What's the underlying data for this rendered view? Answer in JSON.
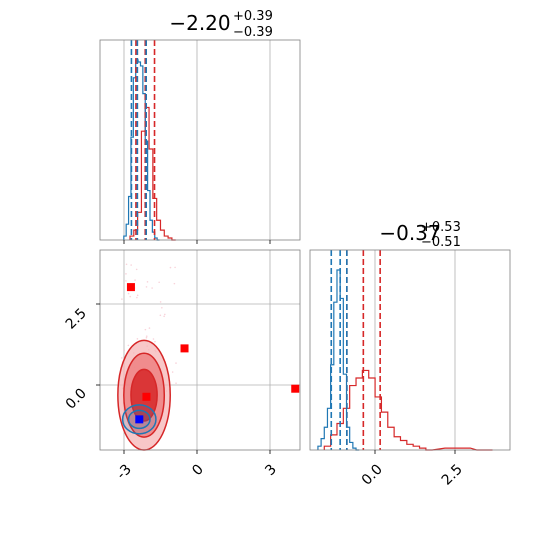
{
  "chart_data": [
    {
      "type": "histogram",
      "panel": "top-left",
      "title": {
        "main": "−2.20",
        "sup": "+0.39",
        "sub": "−0.39"
      },
      "x_ticks": [
        -3,
        0,
        3
      ],
      "x_range": [
        -4.1,
        4.3
      ],
      "colors": {
        "red": "#d62728",
        "blue": "#1f77b4"
      },
      "series": [
        {
          "color": "red",
          "bins": [
            -2.84,
            -2.68,
            -2.52,
            -2.36,
            -2.2,
            -2.04,
            -1.88,
            -1.72,
            -1.56,
            -1.4,
            -1.24,
            -1.08
          ],
          "heights": [
            0.02,
            0.05,
            0.14,
            0.55,
            0.67,
            0.46,
            0.21,
            0.1,
            0.05,
            0.02,
            0.01,
            0.0
          ],
          "quantile_lines": [
            -2.59,
            -2.2,
            -1.81
          ]
        },
        {
          "color": "blue",
          "bins": [
            -3.1,
            -3.0,
            -2.9,
            -2.8,
            -2.7,
            -2.6,
            -2.5,
            -2.4,
            -2.3,
            -2.2,
            -2.1,
            -2.0,
            -1.9,
            -1.8,
            -1.7
          ],
          "heights": [
            0.02,
            0.08,
            0.22,
            0.52,
            0.82,
            0.91,
            0.9,
            0.88,
            0.74,
            0.5,
            0.25,
            0.1,
            0.04,
            0.01,
            0.0
          ],
          "quantile_lines": [
            -2.78,
            -2.53,
            -2.16
          ]
        }
      ]
    },
    {
      "type": "contour",
      "panel": "bottom-left",
      "x_ticks": [
        -3,
        0,
        3
      ],
      "y_ticks": [
        0.0,
        2.5
      ],
      "x_range": [
        -4.1,
        4.3
      ],
      "y_range": [
        -2.0,
        4.2
      ],
      "red_contours": {
        "center": [
          -2.25,
          -0.3
        ],
        "levels": [
          {
            "rx": 1.1,
            "ry": 1.7,
            "fill": "#f6b4b5",
            "opacity": 0.75
          },
          {
            "rx": 0.85,
            "ry": 1.3,
            "fill": "#ee7d7e",
            "opacity": 0.8
          },
          {
            "rx": 0.55,
            "ry": 0.8,
            "fill": "#d62728",
            "opacity": 0.85
          }
        ]
      },
      "blue_contours": {
        "center": [
          -2.45,
          -1.05
        ],
        "levels": [
          {
            "rx": 0.7,
            "ry": 0.45
          },
          {
            "rx": 0.45,
            "ry": 0.28
          }
        ]
      },
      "red_markers": [
        [
          -2.8,
          3.05
        ],
        [
          -0.55,
          1.15
        ],
        [
          4.1,
          -0.1
        ],
        [
          -2.15,
          -0.35
        ]
      ],
      "blue_marker": [
        -2.45,
        -1.05
      ]
    },
    {
      "type": "histogram",
      "panel": "bottom-right",
      "title": {
        "main": "−0.37",
        "sup": "+0.53",
        "sub": "−0.51"
      },
      "x_ticks": [
        0.0,
        2.5
      ],
      "x_range": [
        -2.05,
        4.25
      ],
      "series": [
        {
          "color": "red",
          "bins": [
            -1.6,
            -1.4,
            -1.2,
            -1.0,
            -0.8,
            -0.6,
            -0.4,
            -0.2,
            0.0,
            0.2,
            0.4,
            0.6,
            0.8,
            1.0,
            1.2,
            1.4,
            1.6,
            2.2,
            2.6,
            2.8,
            3.2,
            3.5
          ],
          "heights": [
            0.02,
            0.08,
            0.14,
            0.22,
            0.34,
            0.38,
            0.42,
            0.38,
            0.28,
            0.2,
            0.12,
            0.07,
            0.05,
            0.03,
            0.02,
            0.01,
            0.0,
            0.01,
            0.01,
            0.01,
            0.0,
            0.0
          ],
          "quantile_lines": [
            -0.89,
            -0.37,
            0.16
          ]
        },
        {
          "color": "blue",
          "bins": [
            -1.8,
            -1.7,
            -1.6,
            -1.5,
            -1.4,
            -1.3,
            -1.2,
            -1.1,
            -1.0,
            -0.9,
            -0.8,
            -0.7,
            -0.6
          ],
          "heights": [
            0.02,
            0.06,
            0.12,
            0.22,
            0.45,
            0.78,
            0.95,
            0.8,
            0.4,
            0.12,
            0.04,
            0.01,
            0.0
          ],
          "quantile_lines": [
            -1.38,
            -1.1,
            -0.89
          ]
        }
      ]
    }
  ]
}
